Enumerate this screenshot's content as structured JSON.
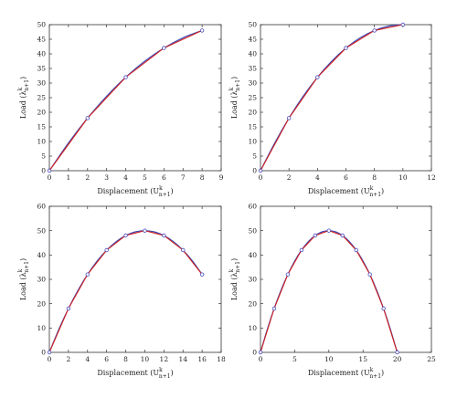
{
  "chart_data": [
    {
      "type": "line",
      "xlabel": "Displacement (U",
      "ylabel": "Load (λ",
      "label_superscript": "k",
      "label_subscript": "n+1",
      "label_close": ")",
      "xlim": [
        0,
        9
      ],
      "ylim": [
        0,
        50
      ],
      "xticks": [
        "0",
        "1",
        "2",
        "3",
        "4",
        "5",
        "6",
        "7",
        "8",
        "9"
      ],
      "yticks": [
        "0",
        "5",
        "10",
        "15",
        "20",
        "25",
        "30",
        "35",
        "40",
        "45",
        "50"
      ],
      "series": [
        {
          "type": "smooth-curve",
          "color": "#3b4bb4",
          "x": [
            0,
            1,
            2,
            3,
            4,
            5,
            6,
            7,
            8
          ],
          "y": [
            0,
            9.5,
            18,
            25.5,
            32,
            37.5,
            42,
            45.5,
            48
          ]
        },
        {
          "type": "markers-polyline",
          "color": "#d42020",
          "marker": "circle",
          "marker_color": "#4b4bbb",
          "x": [
            0,
            2,
            4,
            6,
            8
          ],
          "y": [
            0,
            18,
            32,
            42,
            48
          ]
        }
      ]
    },
    {
      "type": "line",
      "xlabel": "Displacement (U",
      "ylabel": "Load (λ",
      "label_superscript": "k",
      "label_subscript": "n+1",
      "label_close": ")",
      "xlim": [
        0,
        12
      ],
      "ylim": [
        0,
        50
      ],
      "xticks": [
        "0",
        "2",
        "4",
        "6",
        "8",
        "10",
        "12"
      ],
      "yticks": [
        "0",
        "5",
        "10",
        "15",
        "20",
        "25",
        "30",
        "35",
        "40",
        "45",
        "50"
      ],
      "series": [
        {
          "type": "smooth-curve",
          "color": "#3b4bb4",
          "x": [
            0,
            1,
            2,
            3,
            4,
            5,
            6,
            7,
            8,
            9,
            10
          ],
          "y": [
            0,
            9.5,
            18,
            25.5,
            32,
            37.5,
            42,
            45.5,
            48,
            49.5,
            50
          ]
        },
        {
          "type": "markers-polyline",
          "color": "#d42020",
          "marker": "circle",
          "marker_color": "#4b4bbb",
          "x": [
            0,
            2,
            4,
            6,
            8,
            10
          ],
          "y": [
            0,
            18,
            32,
            42,
            48,
            50
          ]
        }
      ]
    },
    {
      "type": "line",
      "xlabel": "Displacement (U",
      "ylabel": "Load (λ",
      "label_superscript": "k",
      "label_subscript": "n+1",
      "label_close": ")",
      "xlim": [
        0,
        18
      ],
      "ylim": [
        0,
        60
      ],
      "xticks": [
        "0",
        "2",
        "4",
        "6",
        "8",
        "10",
        "12",
        "14",
        "16",
        "18"
      ],
      "yticks": [
        "0",
        "10",
        "20",
        "30",
        "40",
        "50",
        "60"
      ],
      "series": [
        {
          "type": "smooth-curve",
          "color": "#3b4bb4",
          "x": [
            0,
            1,
            2,
            3,
            4,
            5,
            6,
            7,
            8,
            9,
            10,
            11,
            12,
            13,
            14,
            15,
            16
          ],
          "y": [
            0,
            9.5,
            18,
            25.5,
            32,
            37.5,
            42,
            45.5,
            48,
            49.5,
            50,
            49.5,
            48,
            45.5,
            42,
            37.5,
            32
          ]
        },
        {
          "type": "markers-polyline",
          "color": "#d42020",
          "marker": "circle",
          "marker_color": "#4b4bbb",
          "x": [
            0,
            2,
            4,
            6,
            8,
            10,
            12,
            14,
            16
          ],
          "y": [
            0,
            18,
            32,
            42,
            48,
            50,
            48,
            42,
            32
          ]
        }
      ]
    },
    {
      "type": "line",
      "xlabel": "Displacement (U",
      "ylabel": "Load (λ",
      "label_superscript": "k",
      "label_subscript": "n+1",
      "label_close": ")",
      "xlim": [
        0,
        25
      ],
      "ylim": [
        0,
        60
      ],
      "xticks": [
        "0",
        "5",
        "10",
        "15",
        "20",
        "25"
      ],
      "yticks": [
        "0",
        "10",
        "20",
        "30",
        "40",
        "50",
        "60"
      ],
      "series": [
        {
          "type": "smooth-curve",
          "color": "#3b4bb4",
          "x": [
            0,
            1,
            2,
            3,
            4,
            5,
            6,
            7,
            8,
            9,
            10,
            11,
            12,
            13,
            14,
            15,
            16,
            17,
            18,
            19,
            20
          ],
          "y": [
            0,
            9.5,
            18,
            25.5,
            32,
            37.5,
            42,
            45.5,
            48,
            49.5,
            50,
            49.5,
            48,
            45.5,
            42,
            37.5,
            32,
            25.5,
            18,
            9.5,
            0
          ]
        },
        {
          "type": "markers-polyline",
          "color": "#d42020",
          "marker": "circle",
          "marker_color": "#4b4bbb",
          "x": [
            0,
            2,
            4,
            6,
            8,
            10,
            12,
            14,
            16,
            18,
            20
          ],
          "y": [
            0,
            18,
            32,
            42,
            48,
            50,
            48,
            42,
            32,
            18,
            0
          ]
        }
      ]
    }
  ]
}
